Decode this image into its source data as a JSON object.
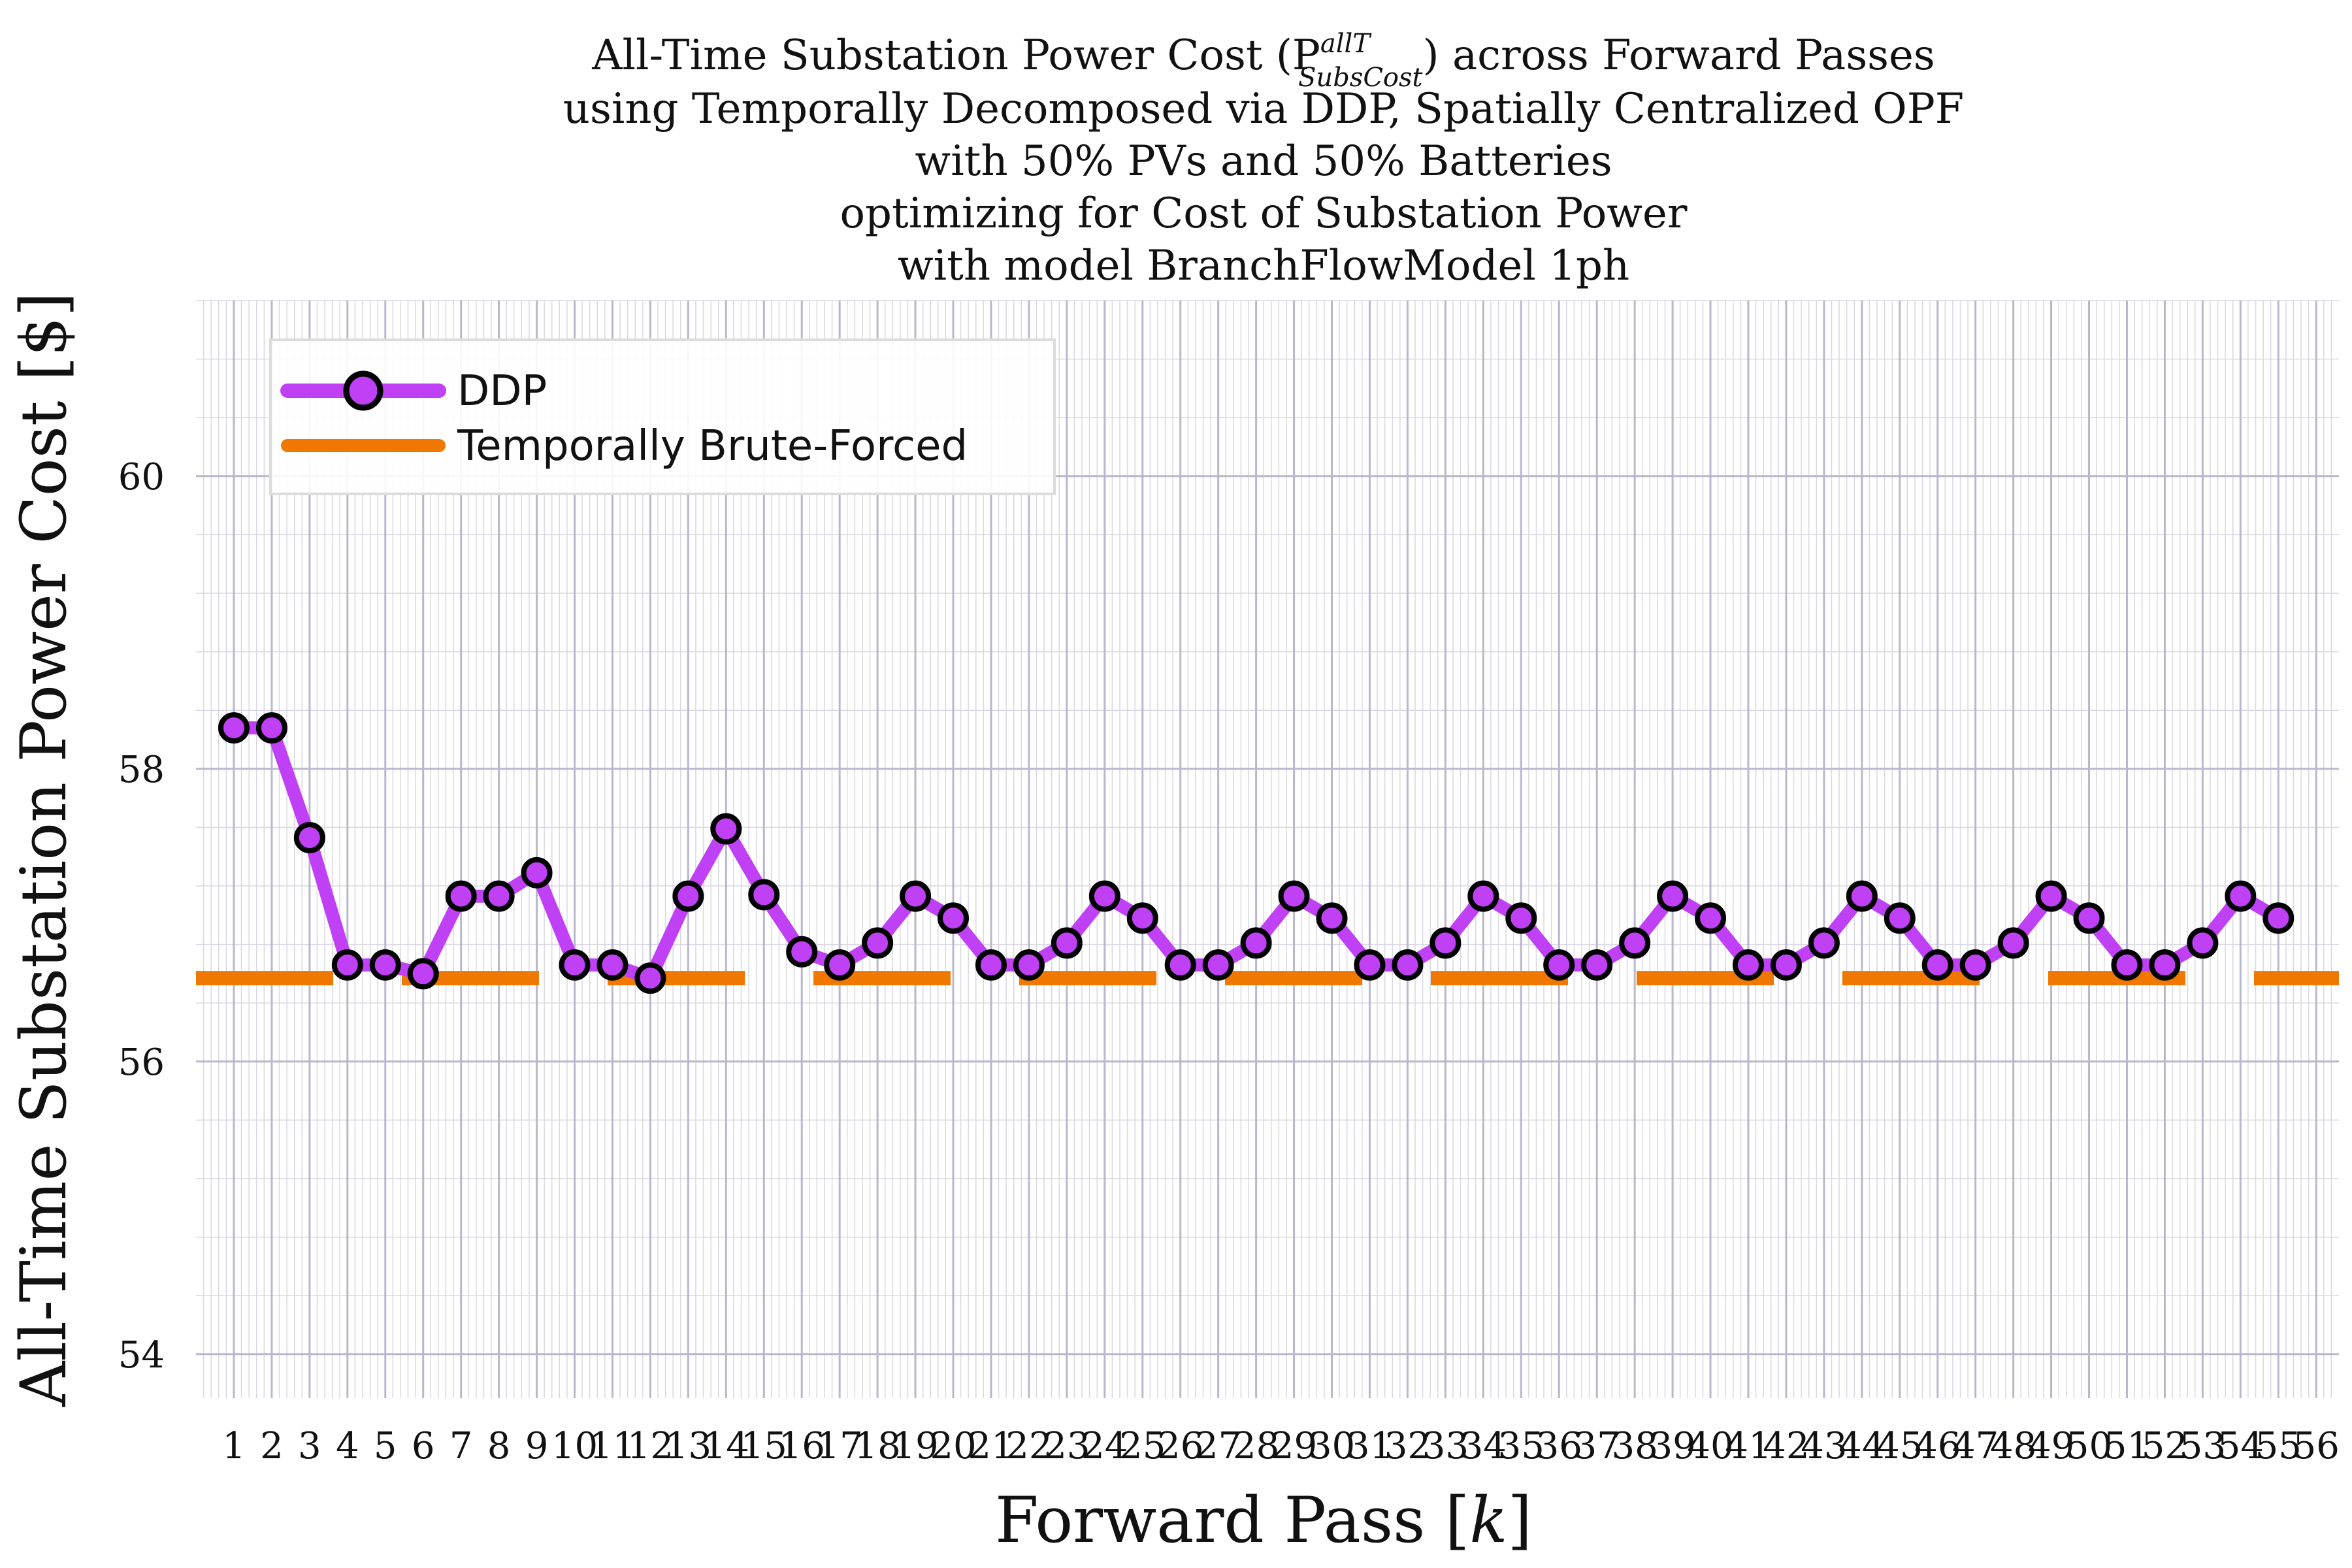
{
  "chart_data": {
    "type": "line",
    "title_lines": [
      "All-Time Substation Power Cost (P",
      "using Temporally Decomposed via DDP, Spatially Centralized OPF",
      "with 50% PVs and 50% Batteries",
      "optimizing for Cost of Substation Power",
      "with model BranchFlowModel 1ph"
    ],
    "title_math": {
      "superscript": "allT",
      "subscript": "SubsCost",
      "suffix": ") across Forward Passes"
    },
    "xlabel": "Forward Pass [",
    "xlabel_var": "k",
    "xlabel_close": "]",
    "ylabel": "All-Time Substation Power Cost [$]",
    "xlim": [
      0,
      56.6
    ],
    "ylim": [
      53.7,
      61.2
    ],
    "y_ticks": [
      54,
      56,
      58,
      60
    ],
    "x_ticks": [
      1,
      2,
      3,
      4,
      5,
      6,
      7,
      8,
      9,
      10,
      11,
      12,
      13,
      14,
      15,
      16,
      17,
      18,
      19,
      20,
      21,
      22,
      23,
      24,
      25,
      26,
      27,
      28,
      29,
      30,
      31,
      32,
      33,
      34,
      35,
      36,
      37,
      38,
      39,
      40,
      41,
      42,
      43,
      44,
      45,
      46,
      47,
      48,
      49,
      50,
      51,
      52,
      53,
      54,
      55,
      56
    ],
    "grid": true,
    "legend_position": "top-left",
    "series": [
      {
        "name": "DDP",
        "color": "#bf40f5",
        "marker": "circle",
        "x": [
          1,
          2,
          3,
          4,
          5,
          6,
          7,
          8,
          9,
          10,
          11,
          12,
          13,
          14,
          15,
          16,
          17,
          18,
          19,
          20,
          21,
          22,
          23,
          24,
          25,
          26,
          27,
          28,
          29,
          30,
          31,
          32,
          33,
          34,
          35,
          36,
          37,
          38,
          39,
          40,
          41,
          42,
          43,
          44,
          45,
          46,
          47,
          48,
          49,
          50,
          51,
          52,
          53,
          54,
          55
        ],
        "values": [
          58.28,
          58.28,
          57.53,
          56.66,
          56.66,
          56.6,
          57.13,
          57.13,
          57.29,
          56.66,
          56.66,
          56.57,
          57.13,
          57.59,
          57.14,
          56.75,
          56.66,
          56.81,
          57.13,
          56.98,
          56.66,
          56.66,
          56.81,
          57.13,
          56.98,
          56.66,
          56.66,
          56.81,
          57.13,
          56.98,
          56.66,
          56.66,
          56.81,
          57.13,
          56.98,
          56.66,
          56.66,
          56.81,
          57.13,
          56.98,
          56.66,
          56.66,
          56.81,
          57.13,
          56.98,
          56.66,
          56.66,
          56.81,
          57.13,
          56.98,
          56.66,
          56.66,
          56.81,
          57.13,
          56.98
        ]
      },
      {
        "name": "Temporally Brute-Forced",
        "color": "#f07800",
        "style": "dashed",
        "values": [
          56.57
        ]
      }
    ]
  }
}
